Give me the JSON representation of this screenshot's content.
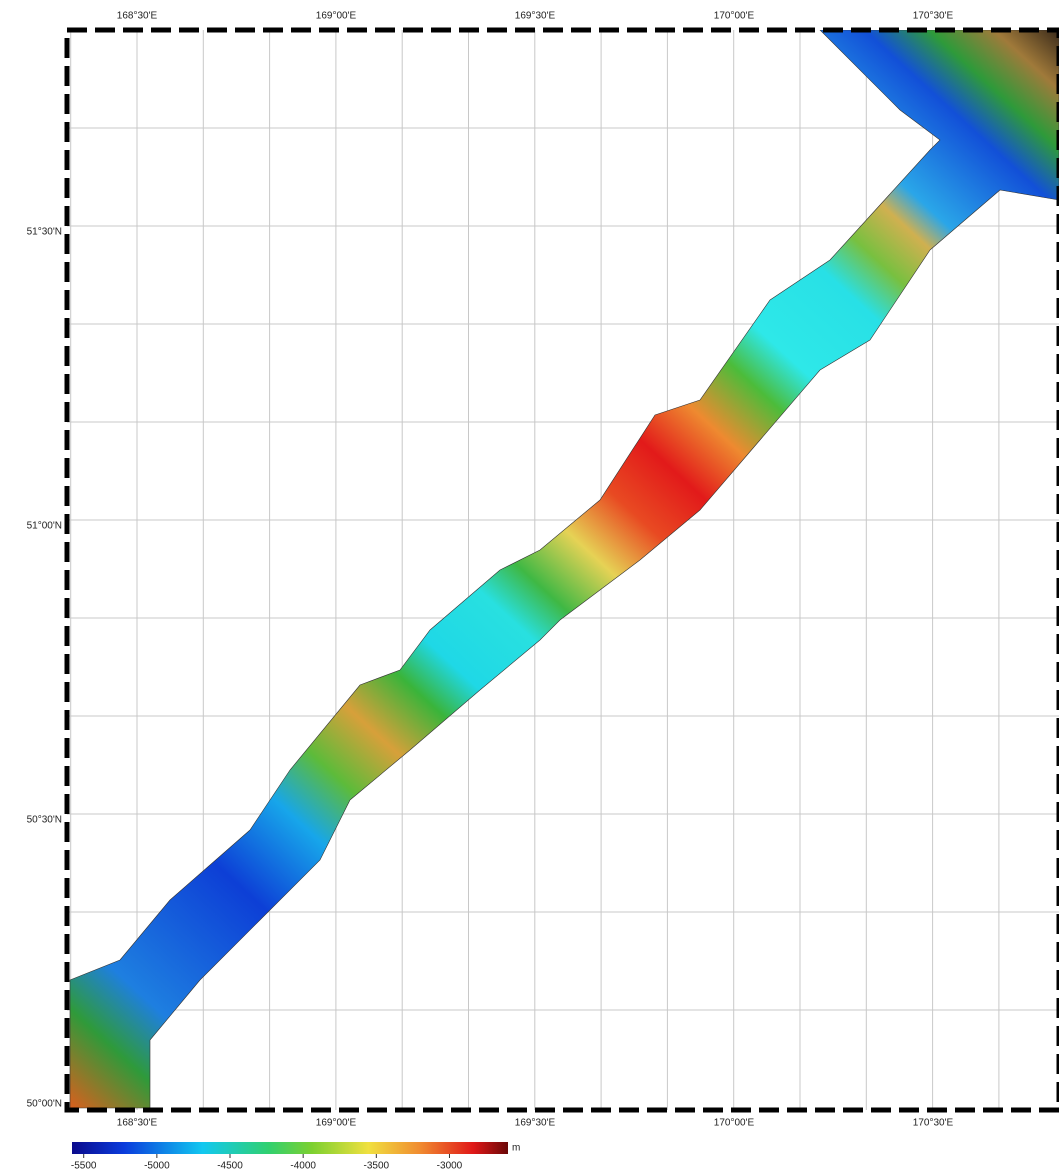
{
  "map": {
    "lon_labels": [
      "168°30'E",
      "169°00'E",
      "169°30'E",
      "170°00'E",
      "170°30'E"
    ],
    "lat_labels": [
      "51°30'N",
      "51°00'N",
      "50°30'N",
      "50°00'N"
    ],
    "colorbar": {
      "ticks": [
        -5500,
        -5000,
        -4500,
        -4000,
        -3500,
        -3000
      ],
      "range": [
        -5580,
        -2600
      ],
      "unit": "m"
    }
  }
}
